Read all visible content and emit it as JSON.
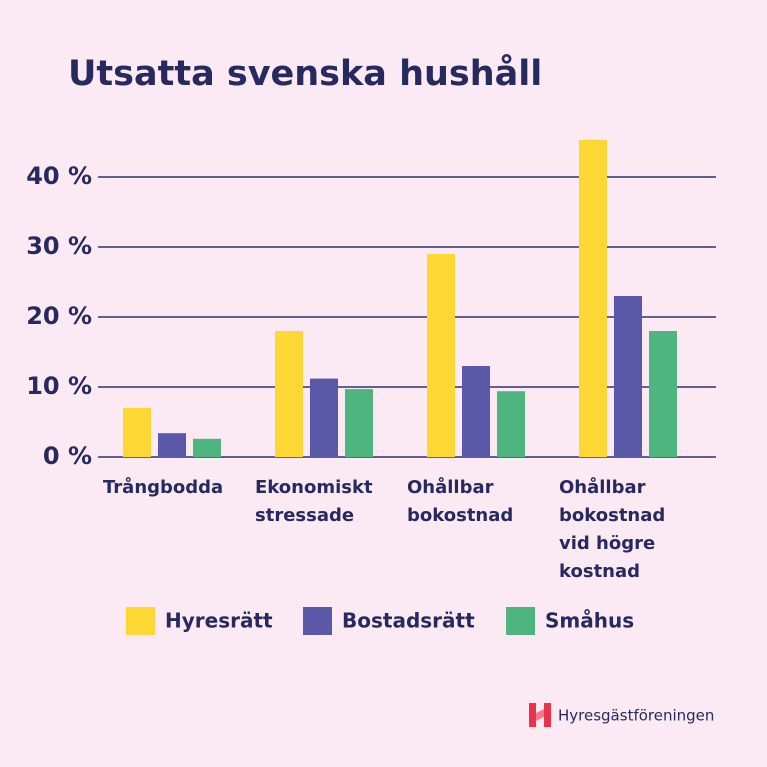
{
  "chart_data": {
    "type": "bar",
    "title": "Utsatta svenska hushåll",
    "categories": [
      "Trångbodda",
      "Ekonomiskt stressade",
      "Ohållbar bokostnad",
      "Ohållbar bokostnad vid högre kostnad"
    ],
    "series": [
      {
        "name": "Hyresrätt",
        "color": "#fdd835",
        "values": [
          7,
          18,
          29,
          45.3
        ]
      },
      {
        "name": "Bostadsrätt",
        "color": "#5b59a7",
        "values": [
          3.4,
          11.2,
          13,
          23
        ]
      },
      {
        "name": "Småhus",
        "color": "#4fb57e",
        "values": [
          2.6,
          9.7,
          9.4,
          18
        ]
      }
    ],
    "ylim": [
      0,
      46
    ],
    "yticks": [
      {
        "value": 0,
        "label": "0 %"
      },
      {
        "value": 10,
        "label": "10 %"
      },
      {
        "value": 20,
        "label": "20 %"
      },
      {
        "value": 30,
        "label": "30 %"
      },
      {
        "value": 40,
        "label": "40 %"
      }
    ],
    "grid": true
  },
  "brand": "Hyresgästföreningen"
}
